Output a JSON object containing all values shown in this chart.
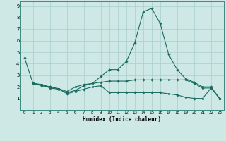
{
  "xlabel": "Humidex (Indice chaleur)",
  "bg_color": "#cde8e5",
  "grid_color": "#aacfcc",
  "line_color": "#1a6b60",
  "xlim": [
    -0.5,
    23.5
  ],
  "ylim": [
    0,
    9.4
  ],
  "xticks": [
    0,
    1,
    2,
    3,
    4,
    5,
    6,
    7,
    8,
    9,
    10,
    11,
    12,
    13,
    14,
    15,
    16,
    17,
    18,
    19,
    20,
    21,
    22,
    23
  ],
  "yticks": [
    1,
    2,
    3,
    4,
    5,
    6,
    7,
    8,
    9
  ],
  "lines": [
    {
      "x": [
        0,
        1,
        2,
        3,
        4,
        5,
        6,
        7,
        8,
        9,
        10,
        11,
        12,
        13,
        14,
        15,
        16,
        17,
        18,
        19,
        20,
        21,
        22,
        23
      ],
      "y": [
        4.5,
        2.3,
        2.2,
        1.9,
        1.8,
        1.5,
        1.7,
        2.1,
        2.3,
        2.9,
        3.5,
        3.5,
        4.2,
        5.8,
        8.5,
        8.8,
        7.5,
        4.8,
        3.5,
        2.7,
        2.4,
        2.0,
        2.0,
        1.0
      ]
    },
    {
      "x": [
        1,
        2,
        3,
        4,
        5,
        6,
        7,
        8,
        9,
        10,
        11,
        12,
        13,
        14,
        15,
        16,
        17,
        18,
        19,
        20,
        21,
        22,
        23
      ],
      "y": [
        2.3,
        2.2,
        2.0,
        1.85,
        1.6,
        2.0,
        2.2,
        2.3,
        2.4,
        2.5,
        2.5,
        2.5,
        2.6,
        2.6,
        2.6,
        2.6,
        2.6,
        2.6,
        2.6,
        2.3,
        1.9,
        1.9,
        1.0
      ]
    },
    {
      "x": [
        1,
        2,
        3,
        4,
        5,
        6,
        7,
        8,
        9,
        10,
        11,
        12,
        13,
        14,
        15,
        16,
        17,
        18,
        19,
        20,
        21,
        22,
        23
      ],
      "y": [
        2.3,
        2.1,
        2.0,
        1.85,
        1.4,
        1.6,
        1.8,
        2.0,
        2.1,
        1.5,
        1.5,
        1.5,
        1.5,
        1.5,
        1.5,
        1.5,
        1.4,
        1.3,
        1.1,
        1.0,
        1.0,
        1.9,
        1.0
      ]
    }
  ]
}
